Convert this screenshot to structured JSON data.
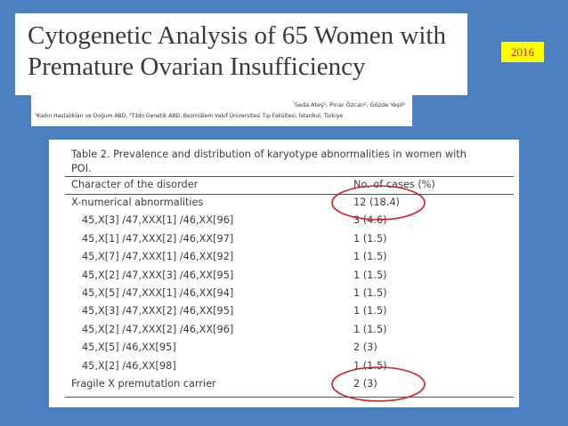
{
  "header": {
    "title": "Cytogenetic Analysis of 65 Women with\nPremature Ovarian Insufficiency",
    "year": "2016"
  },
  "authors": {
    "names": "Seda Ateş¹, Pınar Özcan², Gözde Yeşil²",
    "affiliation": "¹Kadın Hastalıkları ve Doğum ABD, ²Tıbbi Genetik ABD, Bezmiâlem Vakıf Üniversitesi Tıp Fakültesi, İstanbul, Türkiye"
  },
  "table": {
    "caption_lines": [
      "Table 2. Prevalence and distribution of karyotype abnormalities in women with",
      "POI."
    ],
    "columns": [
      "Character of the disorder",
      "No. of cases (%)"
    ],
    "groups": [
      {
        "label": "X-numerical abnormalities",
        "value": "12 (18.4)",
        "items": [
          [
            "45,X[3] /47,XXX[1] /46,XX[96]",
            "3 (4.6)"
          ],
          [
            "45,X[1] /47,XXX[2] /46,XX[97]",
            "1 (1.5)"
          ],
          [
            "45,X[7] /47,XXX[1] /46,XX[92]",
            "1 (1.5)"
          ],
          [
            "45,X[2] /47,XXX[3] /46,XX[95]",
            "1 (1.5)"
          ],
          [
            "45,X[5] /47,XXX[1] /46,XX[94]",
            "1 (1.5)"
          ],
          [
            "45,X[3] /47,XXX[2] /46,XX[95]",
            "1 (1.5)"
          ],
          [
            "45,X[2] /47,XXX[2] /46,XX[96]",
            "1 (1.5)"
          ],
          [
            "45,X[5] /46,XX[95]",
            "2 (3)"
          ],
          [
            "45,X[2] /46,XX[98]",
            "1 (1.5)"
          ]
        ]
      },
      {
        "label": "Fragile X premutation carrier",
        "value": "2 (3)"
      }
    ]
  }
}
